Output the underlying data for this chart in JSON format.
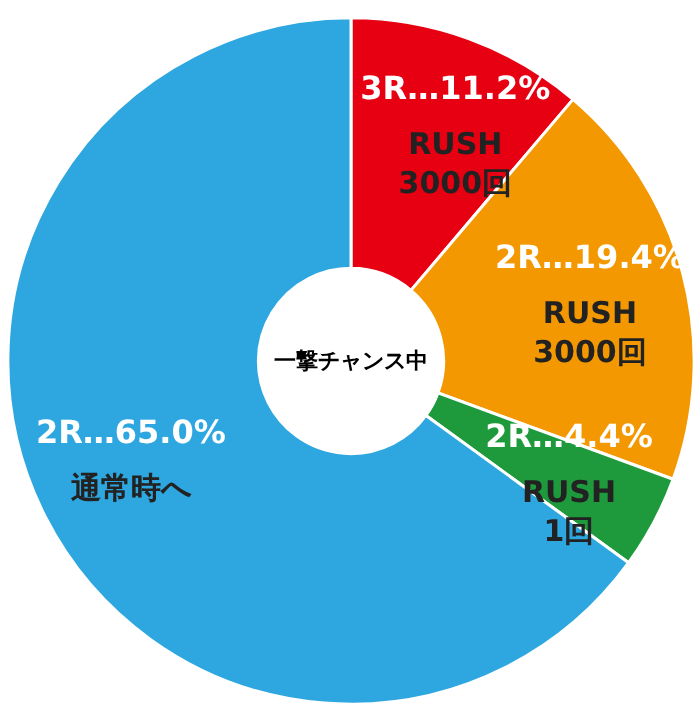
{
  "chart_data": {
    "type": "donut",
    "title": "一撃チャンス中",
    "categories": [
      "3R…11.2%",
      "2R…19.4%",
      "2R…4.4%",
      "2R…65.0%"
    ],
    "values": [
      11.2,
      19.4,
      4.4,
      65.0
    ],
    "colors": [
      "#e60012",
      "#f39800",
      "#1e9a3c",
      "#2ea7e0"
    ],
    "annotations": [
      {
        "text": "RUSH\n3000回",
        "x": "3R…11.2%"
      },
      {
        "text": "RUSH\n3000回",
        "x": "2R…19.4%"
      },
      {
        "text": "RUSH\n1回",
        "x": "2R…4.4%"
      },
      {
        "text": "通常時へ",
        "x": "2R…65.0%"
      }
    ]
  }
}
